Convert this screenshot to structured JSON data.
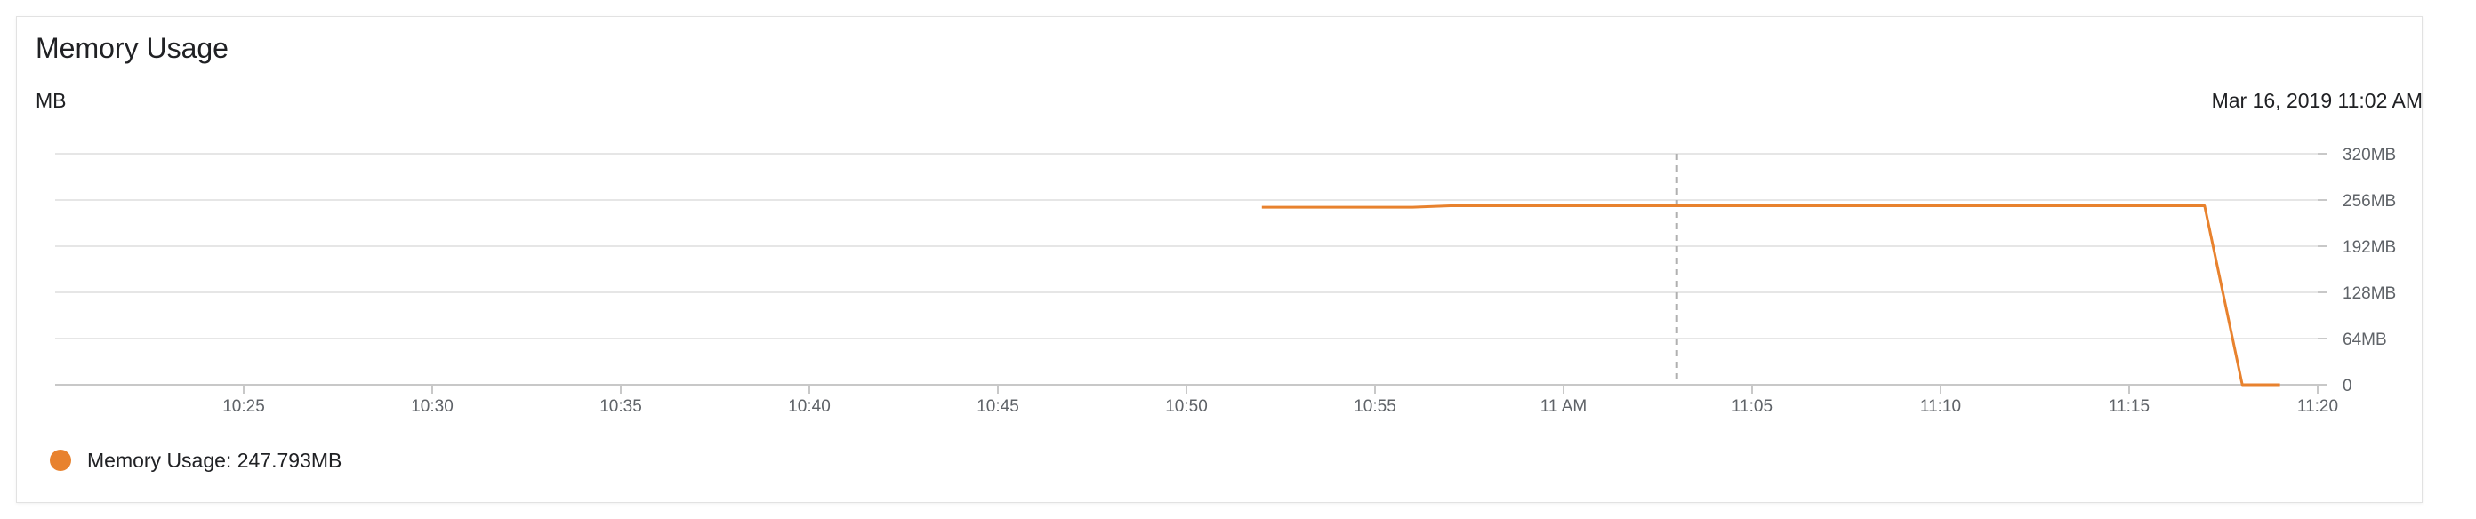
{
  "card": {
    "title": "Memory Usage",
    "unit_label": "MB",
    "hover_timestamp": "Mar 16, 2019 11:02 AM"
  },
  "legend": {
    "entry": "Memory Usage: 247.793MB",
    "color": "#e8822e"
  },
  "chart_data": {
    "type": "line",
    "title": "Memory Usage",
    "xlabel": "",
    "ylabel": "MB",
    "xlim": [
      "10:20",
      "11:20"
    ],
    "ylim": [
      0,
      320
    ],
    "x_ticks": [
      "10:25",
      "10:30",
      "10:35",
      "10:40",
      "10:45",
      "10:50",
      "10:55",
      "11 AM",
      "11:05",
      "11:10",
      "11:15",
      "11:20"
    ],
    "y_ticks": [
      "0",
      "64MB",
      "128MB",
      "192MB",
      "256MB",
      "320MB"
    ],
    "grid": true,
    "hover_time": "11:03",
    "series": [
      {
        "name": "Memory Usage",
        "color": "#e8822e",
        "x": [
          "10:52",
          "10:56",
          "10:57",
          "11:00",
          "11:05",
          "11:10",
          "11:15",
          "11:17",
          "11:18",
          "11:19"
        ],
        "y": [
          246,
          246,
          248,
          248,
          248,
          248,
          248,
          248,
          0,
          0
        ]
      }
    ]
  }
}
